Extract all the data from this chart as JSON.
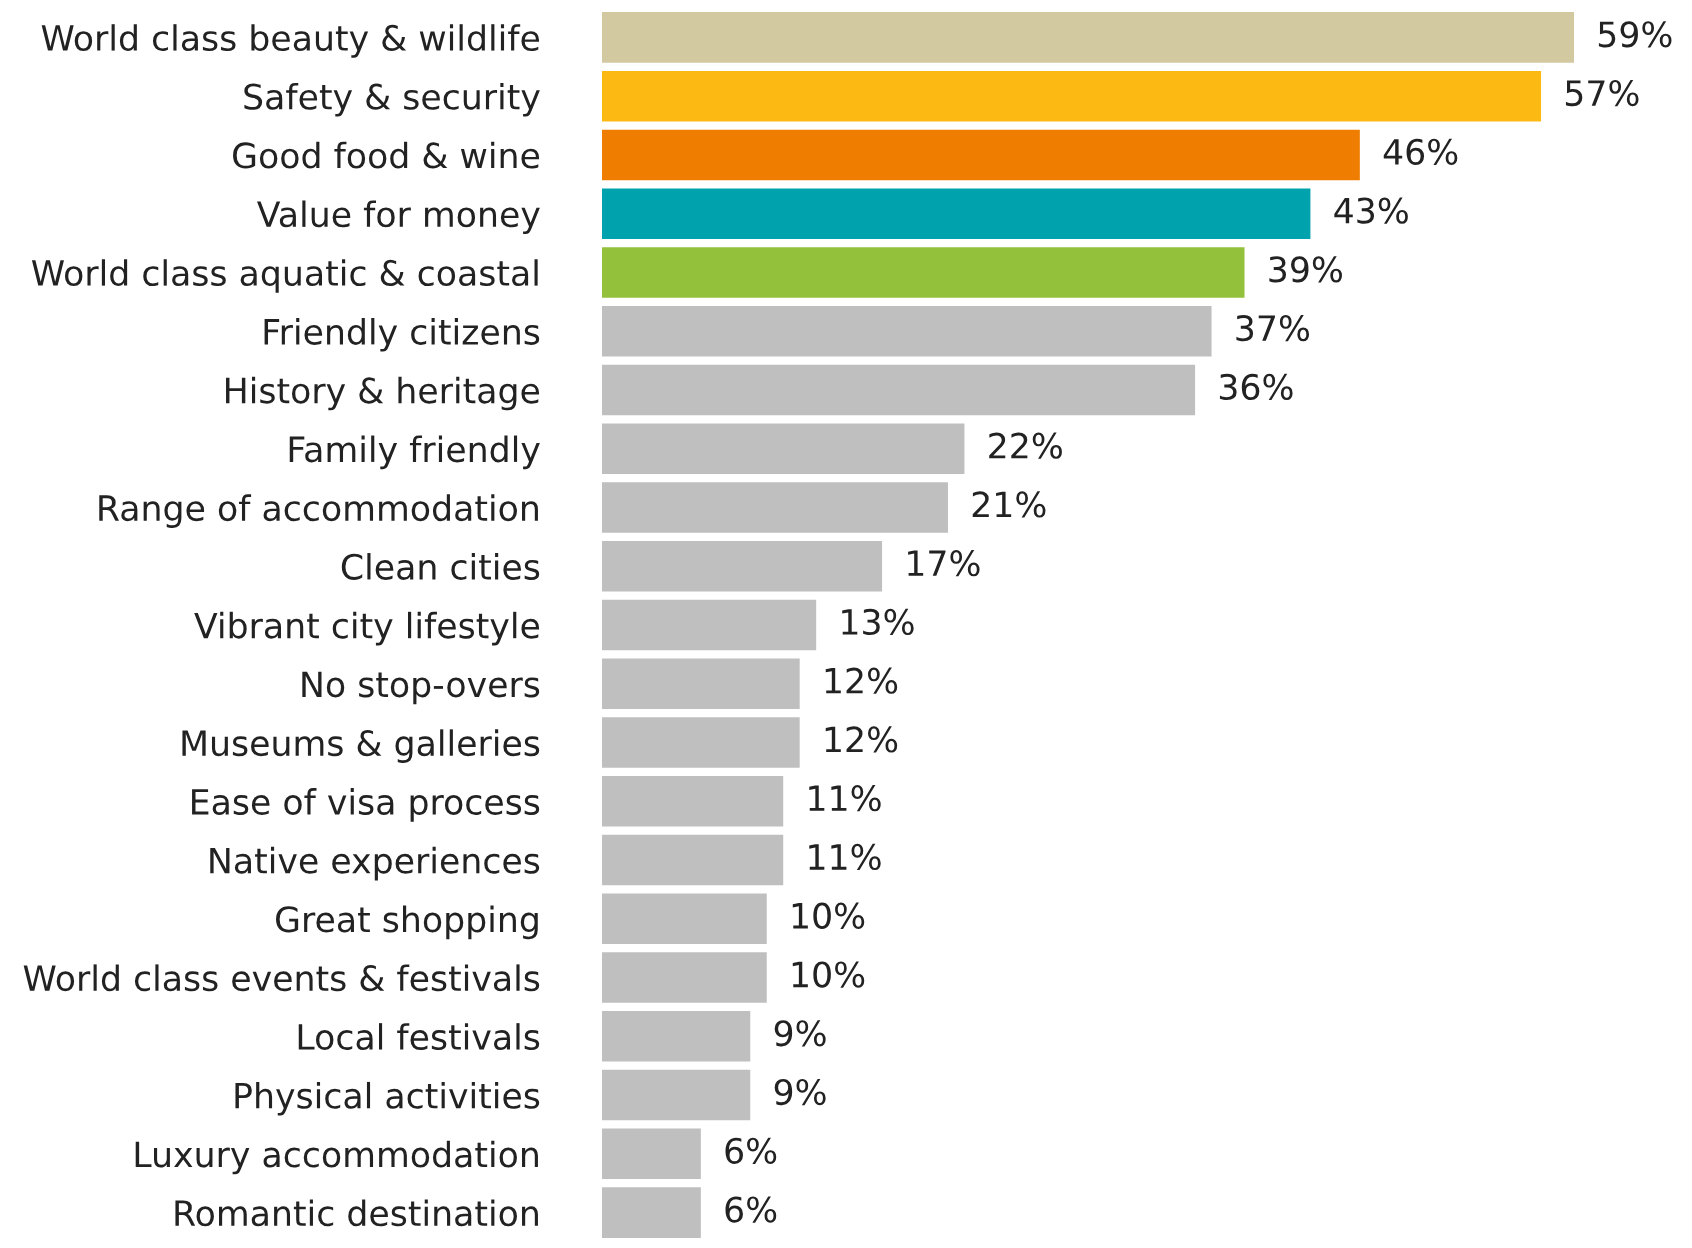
{
  "chart_data": {
    "type": "bar",
    "orientation": "horizontal",
    "categories": [
      "World class beauty & wildlife",
      "Safety & security",
      "Good food & wine",
      "Value for money",
      "World class aquatic & coastal",
      "Friendly citizens",
      "History & heritage",
      "Family friendly",
      "Range of accommodation",
      "Clean cities",
      "Vibrant city lifestyle",
      "No stop-overs",
      "Museums & galleries",
      "Ease of visa process",
      "Native experiences",
      "Great shopping",
      "World class events & festivals",
      "Local festivals",
      "Physical activities",
      "Luxury accommodation",
      "Romantic destination"
    ],
    "values": [
      59,
      57,
      46,
      43,
      39,
      37,
      36,
      22,
      21,
      17,
      13,
      12,
      12,
      11,
      11,
      10,
      10,
      9,
      9,
      6,
      6
    ],
    "value_labels": [
      "59%",
      "57%",
      "46%",
      "43%",
      "39%",
      "37%",
      "36%",
      "22%",
      "21%",
      "17%",
      "13%",
      "12%",
      "12%",
      "11%",
      "11%",
      "10%",
      "10%",
      "9%",
      "9%",
      "6%",
      "6%"
    ],
    "colors": [
      "#d3c9a0",
      "#fdb913",
      "#ee7d00",
      "#00a3ad",
      "#93c13c",
      "#bfbfbf",
      "#bfbfbf",
      "#bfbfbf",
      "#bfbfbf",
      "#bfbfbf",
      "#bfbfbf",
      "#bfbfbf",
      "#bfbfbf",
      "#bfbfbf",
      "#bfbfbf",
      "#bfbfbf",
      "#bfbfbf",
      "#bfbfbf",
      "#bfbfbf",
      "#bfbfbf",
      "#bfbfbf"
    ],
    "grid": false,
    "legend": false
  }
}
